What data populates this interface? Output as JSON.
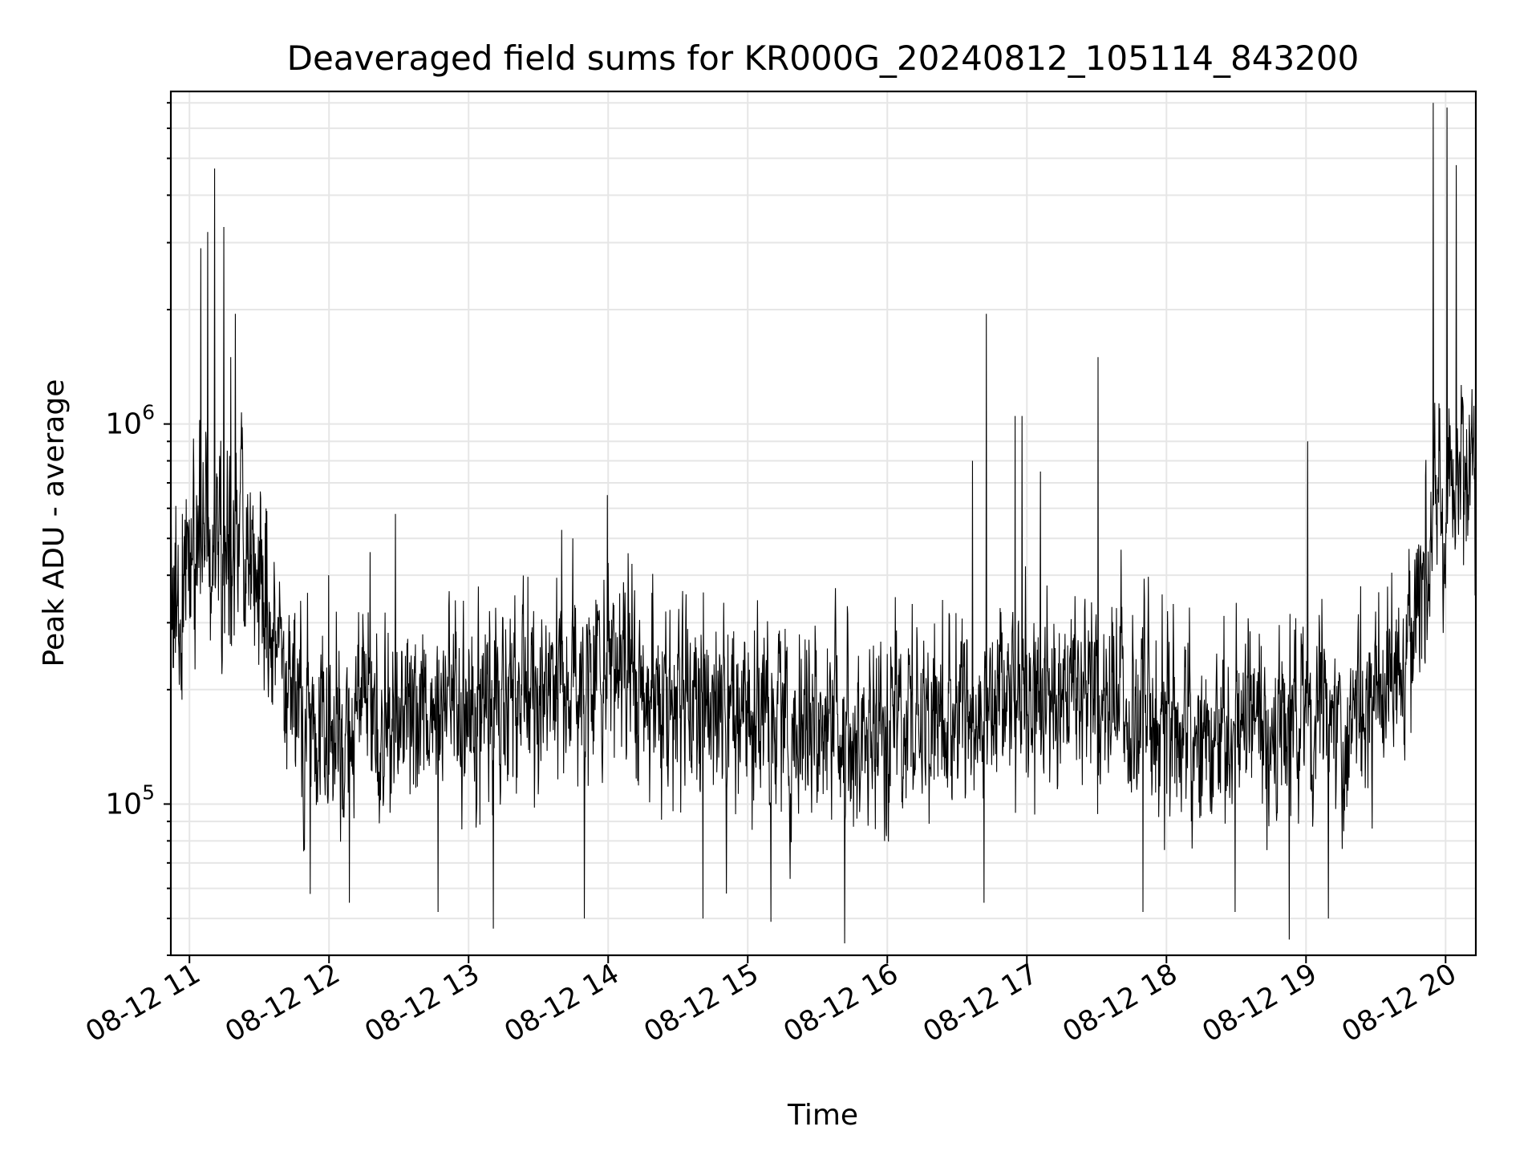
{
  "chart_data": {
    "type": "line",
    "title": "Deaveraged field sums for KR000G_20240812_105114_843200",
    "xlabel": "Time",
    "ylabel": "Peak ADU - average",
    "y_scale": "log",
    "ylim": [
      40000,
      7500000
    ],
    "xlim": [
      "2024-08-12 10:52",
      "2024-08-12 20:13"
    ],
    "grid": true,
    "legend": "none",
    "line_color": "#000000",
    "xticks": [
      {
        "value": "2024-08-12 11:00",
        "label": "08-12 11"
      },
      {
        "value": "2024-08-12 12:00",
        "label": "08-12 12"
      },
      {
        "value": "2024-08-12 13:00",
        "label": "08-12 13"
      },
      {
        "value": "2024-08-12 14:00",
        "label": "08-12 14"
      },
      {
        "value": "2024-08-12 15:00",
        "label": "08-12 15"
      },
      {
        "value": "2024-08-12 16:00",
        "label": "08-12 16"
      },
      {
        "value": "2024-08-12 17:00",
        "label": "08-12 17"
      },
      {
        "value": "2024-08-12 18:00",
        "label": "08-12 18"
      },
      {
        "value": "2024-08-12 19:00",
        "label": "08-12 19"
      },
      {
        "value": "2024-08-12 20:00",
        "label": "08-12 20"
      }
    ],
    "yticks": [
      {
        "value": 100000,
        "base": "10",
        "exp": "5"
      },
      {
        "value": 1000000,
        "base": "10",
        "exp": "6"
      }
    ],
    "series": [
      {
        "x": [
          "2024-08-12 10:52",
          "2024-08-12 11:00",
          "2024-08-12 11:10",
          "2024-08-12 11:20",
          "2024-08-12 11:30",
          "2024-08-12 11:35",
          "2024-08-12 11:40",
          "2024-08-12 11:50",
          "2024-08-12 12:00",
          "2024-08-12 12:15",
          "2024-08-12 12:30",
          "2024-08-12 12:45",
          "2024-08-12 13:00",
          "2024-08-12 13:15",
          "2024-08-12 13:30",
          "2024-08-12 13:45",
          "2024-08-12 14:00",
          "2024-08-12 14:15",
          "2024-08-12 14:30",
          "2024-08-12 14:45",
          "2024-08-12 15:00",
          "2024-08-12 15:15",
          "2024-08-12 15:30",
          "2024-08-12 15:45",
          "2024-08-12 16:00",
          "2024-08-12 16:15",
          "2024-08-12 16:30",
          "2024-08-12 16:45",
          "2024-08-12 17:00",
          "2024-08-12 17:15",
          "2024-08-12 17:30",
          "2024-08-12 17:45",
          "2024-08-12 18:00",
          "2024-08-12 18:15",
          "2024-08-12 18:30",
          "2024-08-12 18:45",
          "2024-08-12 19:00",
          "2024-08-12 19:15",
          "2024-08-12 19:30",
          "2024-08-12 19:40",
          "2024-08-12 19:45",
          "2024-08-12 19:50",
          "2024-08-12 19:55",
          "2024-08-12 20:00",
          "2024-08-12 20:06",
          "2024-08-12 20:13"
        ],
        "y": [
          300000,
          420000,
          480000,
          520000,
          450000,
          350000,
          260000,
          170000,
          150000,
          160000,
          170000,
          165000,
          175000,
          185000,
          200000,
          210000,
          215000,
          205000,
          195000,
          185000,
          175000,
          168000,
          162000,
          158000,
          160000,
          165000,
          170000,
          175000,
          185000,
          190000,
          185000,
          175000,
          170000,
          165000,
          160000,
          158000,
          165000,
          175000,
          190000,
          210000,
          280000,
          400000,
          600000,
          700000,
          780000,
          820000
        ]
      }
    ],
    "spikes": [
      {
        "x": "2024-08-12 10:57",
        "y": 580000
      },
      {
        "x": "2024-08-12 11:05",
        "y": 2900000
      },
      {
        "x": "2024-08-12 11:08",
        "y": 3200000
      },
      {
        "x": "2024-08-12 11:11",
        "y": 4700000
      },
      {
        "x": "2024-08-12 11:15",
        "y": 3300000
      },
      {
        "x": "2024-08-12 11:18",
        "y": 1500000
      },
      {
        "x": "2024-08-12 11:20",
        "y": 1950000
      },
      {
        "x": "2024-08-12 12:00",
        "y": 400000
      },
      {
        "x": "2024-08-12 12:18",
        "y": 460000
      },
      {
        "x": "2024-08-12 12:29",
        "y": 580000
      },
      {
        "x": "2024-08-12 13:45",
        "y": 500000
      },
      {
        "x": "2024-08-12 14:00",
        "y": 650000
      },
      {
        "x": "2024-08-12 16:37",
        "y": 800000
      },
      {
        "x": "2024-08-12 16:43",
        "y": 1950000
      },
      {
        "x": "2024-08-12 16:55",
        "y": 1050000
      },
      {
        "x": "2024-08-12 16:58",
        "y": 1050000
      },
      {
        "x": "2024-08-12 17:06",
        "y": 750000
      },
      {
        "x": "2024-08-12 17:31",
        "y": 1500000
      },
      {
        "x": "2024-08-12 19:01",
        "y": 900000
      },
      {
        "x": "2024-08-12 19:55",
        "y": 7000000
      },
      {
        "x": "2024-08-12 20:01",
        "y": 6800000
      },
      {
        "x": "2024-08-12 20:05",
        "y": 4800000
      }
    ],
    "dips": [
      {
        "x": "2024-08-12 11:52",
        "y": 58000
      },
      {
        "x": "2024-08-12 12:09",
        "y": 55000
      },
      {
        "x": "2024-08-12 12:47",
        "y": 52000
      },
      {
        "x": "2024-08-12 13:11",
        "y": 47000
      },
      {
        "x": "2024-08-12 13:50",
        "y": 50000
      },
      {
        "x": "2024-08-12 14:41",
        "y": 50000
      },
      {
        "x": "2024-08-12 15:10",
        "y": 49000
      },
      {
        "x": "2024-08-12 15:42",
        "y": 43000
      },
      {
        "x": "2024-08-12 16:42",
        "y": 55000
      },
      {
        "x": "2024-08-12 17:50",
        "y": 52000
      },
      {
        "x": "2024-08-12 18:30",
        "y": 52000
      },
      {
        "x": "2024-08-12 18:53",
        "y": 44000
      },
      {
        "x": "2024-08-12 19:10",
        "y": 50000
      }
    ]
  }
}
